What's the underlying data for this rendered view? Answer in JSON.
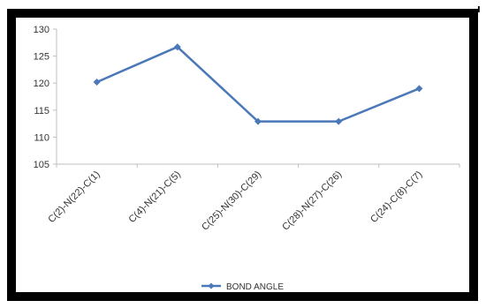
{
  "chart_data": {
    "type": "line",
    "categories": [
      "C(2)-N(22)-C(1)",
      "C(4)-N(21)-C(5)",
      "C(25)-N(30)-C(29)",
      "C(28)-N(27)-C(26)",
      "C(24)-C(8)-C(7)"
    ],
    "series": [
      {
        "name": "BOND ANGLE",
        "values": [
          120.2,
          126.7,
          112.9,
          112.9,
          119.0
        ]
      }
    ],
    "ylim": [
      105,
      130
    ],
    "yticks": [
      "105",
      "110",
      "115",
      "120",
      "125",
      "130"
    ],
    "title": "",
    "xlabel": "",
    "ylabel": "",
    "grid": false,
    "legend_position": "bottom",
    "colors": {
      "line": "#4a78b8",
      "marker": "#4a78b8",
      "axis": "#bfbfbf"
    }
  },
  "corner_mark": "I"
}
